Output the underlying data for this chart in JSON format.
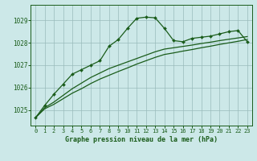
{
  "title": "Graphe pression niveau de la mer (hPa)",
  "background_color": "#cce8e8",
  "grid_color": "#99bbbb",
  "line_color": "#1a5c1a",
  "xlim": [
    -0.5,
    23.5
  ],
  "ylim": [
    1024.3,
    1029.7
  ],
  "yticks": [
    1025,
    1026,
    1027,
    1028,
    1029
  ],
  "xticks": [
    0,
    1,
    2,
    3,
    4,
    5,
    6,
    7,
    8,
    9,
    10,
    11,
    12,
    13,
    14,
    15,
    16,
    17,
    18,
    19,
    20,
    21,
    22,
    23
  ],
  "line_main": [
    1024.65,
    1025.2,
    1025.7,
    1026.15,
    1026.6,
    1026.8,
    1027.0,
    1027.2,
    1027.85,
    1028.15,
    1028.65,
    1029.1,
    1029.15,
    1029.12,
    1028.65,
    1028.1,
    1028.05,
    1028.2,
    1028.25,
    1028.3,
    1028.4,
    1028.5,
    1028.55,
    1028.05
  ],
  "line_diag1": [
    1024.65,
    1025.1,
    1025.35,
    1025.65,
    1025.95,
    1026.2,
    1026.45,
    1026.65,
    1026.85,
    1027.0,
    1027.15,
    1027.3,
    1027.45,
    1027.6,
    1027.72,
    1027.78,
    1027.84,
    1027.9,
    1027.97,
    1028.03,
    1028.1,
    1028.16,
    1028.22,
    1028.28
  ],
  "line_diag2": [
    1024.65,
    1025.05,
    1025.25,
    1025.5,
    1025.75,
    1025.95,
    1026.18,
    1026.38,
    1026.55,
    1026.72,
    1026.88,
    1027.05,
    1027.2,
    1027.35,
    1027.48,
    1027.55,
    1027.63,
    1027.7,
    1027.78,
    1027.85,
    1027.93,
    1028.0,
    1028.07,
    1028.15
  ]
}
